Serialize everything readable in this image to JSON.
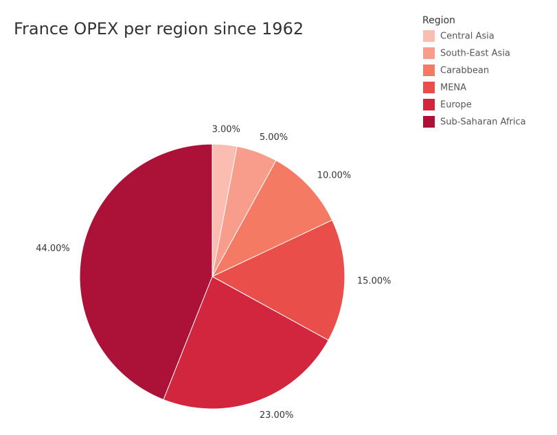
{
  "chart_data": {
    "type": "pie",
    "title": "France OPEX per region since 1962",
    "legend_title": "Region",
    "categories": [
      "Central Asia",
      "South-East Asia",
      "Carabbean",
      "MENA",
      "Europe",
      "Sub-Saharan Africa"
    ],
    "values": [
      3,
      5,
      10,
      15,
      23,
      44
    ],
    "value_labels": [
      "3.00%",
      "5.00%",
      "10.00%",
      "15.00%",
      "23.00%",
      "44.00%"
    ],
    "colors": [
      "#fbbcb1",
      "#f89c8b",
      "#f47a64",
      "#ea4e4a",
      "#d2263e",
      "#ac1238"
    ],
    "legend": "top-right"
  }
}
